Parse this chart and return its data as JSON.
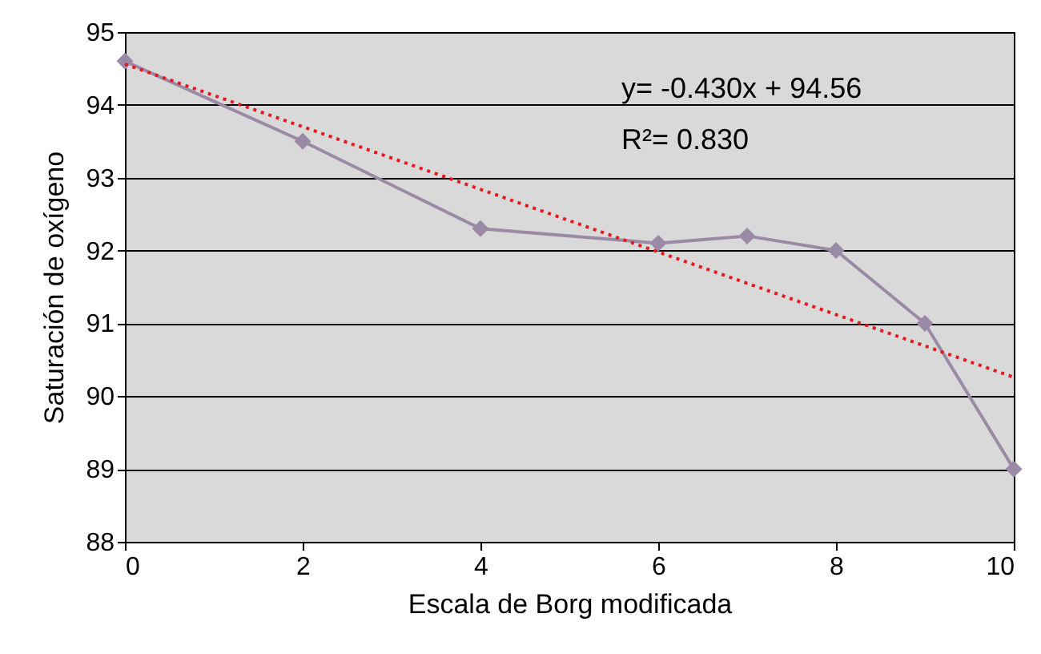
{
  "chart_data": {
    "type": "line",
    "xlabel": "Escala de Borg modificada",
    "ylabel": "Saturación de oxígeno",
    "xlim": [
      0,
      10
    ],
    "xticks": [
      0,
      2,
      4,
      6,
      8,
      10
    ],
    "ylim": [
      88,
      95
    ],
    "yticks": [
      88,
      89,
      90,
      91,
      92,
      93,
      94,
      95
    ],
    "grid": "y",
    "series": [
      {
        "color": "#9b8aa6",
        "x": [
          0,
          2,
          4,
          6,
          7,
          8,
          9,
          10
        ],
        "values": [
          94.6,
          93.5,
          92.3,
          92.1,
          92.2,
          92.0,
          91.0,
          89.0
        ],
        "marker": "diamond",
        "line_style": "solid"
      },
      {
        "type": "line",
        "color": "#e8191e",
        "x": [
          0,
          10
        ],
        "values": [
          94.56,
          90.26
        ],
        "marker": "none",
        "line_style": "dotted"
      }
    ],
    "annotations": [
      "y= -0.430x + 94.56",
      "R²= 0.830"
    ]
  }
}
